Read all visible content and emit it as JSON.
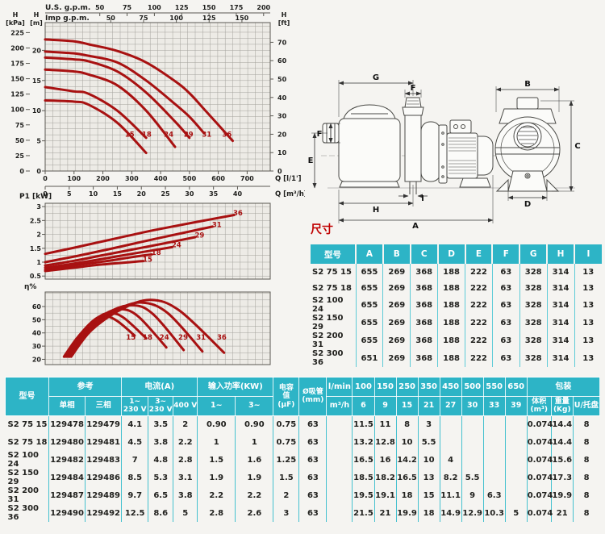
{
  "colors": {
    "accent_teal": "#2db4c6",
    "table_line_teal": "#45c1cf",
    "curve_red": "#a81111",
    "title_red": "#c00000"
  },
  "chart_data": [
    {
      "type": "line",
      "name": "head-vs-flow",
      "x_axes": [
        {
          "unit": "U.S. g.p.m.",
          "ticks": [
            50,
            75,
            100,
            125,
            150,
            175,
            200
          ],
          "lmin_per_unit": 3.785
        },
        {
          "unit": "Imp g.p.m.",
          "ticks": [
            50,
            75,
            100,
            125,
            150
          ],
          "lmin_per_unit": 4.546
        },
        {
          "unit": "Q [l/1']",
          "ticks": [
            0,
            100,
            200,
            300,
            400,
            500,
            600,
            700
          ],
          "lmin_per_unit": 1
        },
        {
          "unit": "Q [m³/h]",
          "ticks": [
            0,
            5,
            10,
            15,
            20,
            25,
            30,
            35,
            40
          ],
          "lmin_per_unit": 16.667
        }
      ],
      "y_axes": [
        {
          "unit": "H",
          "unit2": "[kPa]",
          "ticks": [
            0,
            25,
            50,
            75,
            100,
            125,
            150,
            175,
            200,
            225
          ],
          "m_per_unit": 0.10197
        },
        {
          "unit": "H",
          "unit2": "[m]",
          "ticks": [
            0,
            5,
            10,
            15,
            20
          ],
          "m_per_unit": 1
        },
        {
          "unit": "H",
          "unit2": "[ft]",
          "ticks": [
            0,
            10,
            20,
            30,
            40,
            50,
            60,
            70
          ],
          "m_per_unit": 0.3048
        }
      ],
      "x_range_lmin": [
        0,
        780
      ],
      "y_range_m": [
        0,
        24.6
      ],
      "legend_position": "curve-end-labels",
      "grid": "on",
      "series": [
        {
          "name": "15",
          "points": [
            [
              0,
              11.7
            ],
            [
              100,
              11.5
            ],
            [
              150,
              11
            ],
            [
              250,
              8
            ],
            [
              350,
              3
            ]
          ],
          "label_at": [
            293,
            5.7
          ]
        },
        {
          "name": "18",
          "points": [
            [
              0,
              13.9
            ],
            [
              100,
              13.2
            ],
            [
              150,
              12.8
            ],
            [
              250,
              10
            ],
            [
              350,
              5.5
            ]
          ],
          "label_at": [
            352,
            5.7
          ]
        },
        {
          "name": "24",
          "points": [
            [
              0,
              16.8
            ],
            [
              100,
              16.5
            ],
            [
              150,
              16
            ],
            [
              250,
              14.2
            ],
            [
              350,
              10
            ],
            [
              450,
              4
            ]
          ],
          "label_at": [
            428,
            5.7
          ]
        },
        {
          "name": "29",
          "points": [
            [
              0,
              18.8
            ],
            [
              100,
              18.5
            ],
            [
              150,
              18.2
            ],
            [
              250,
              16.5
            ],
            [
              350,
              13
            ],
            [
              450,
              8.2
            ],
            [
              500,
              5.5
            ]
          ],
          "label_at": [
            497,
            5.7
          ]
        },
        {
          "name": "31",
          "points": [
            [
              0,
              19.8
            ],
            [
              100,
              19.5
            ],
            [
              150,
              19.1
            ],
            [
              250,
              18
            ],
            [
              350,
              15
            ],
            [
              450,
              11.1
            ],
            [
              500,
              9
            ],
            [
              550,
              6.3
            ]
          ],
          "label_at": [
            560,
            5.7
          ]
        },
        {
          "name": "36",
          "points": [
            [
              0,
              21.8
            ],
            [
              100,
              21.5
            ],
            [
              150,
              21
            ],
            [
              250,
              19.9
            ],
            [
              350,
              18
            ],
            [
              450,
              14.9
            ],
            [
              500,
              12.9
            ],
            [
              550,
              10.3
            ],
            [
              650,
              5
            ]
          ],
          "label_at": [
            630,
            5.7
          ]
        }
      ]
    },
    {
      "type": "line",
      "name": "input-power-vs-flow",
      "ylabel": "P1 [kW]",
      "y_ticks": [
        "0.5",
        "1",
        "1.5",
        "2",
        "2.5",
        "3"
      ],
      "y_range": [
        0.39,
        3.12
      ],
      "grid": "on",
      "series": [
        {
          "name": "15",
          "points": [
            [
              0,
              0.68
            ],
            [
              100,
              0.8
            ],
            [
              200,
              0.92
            ],
            [
              340,
              1.04
            ]
          ],
          "label_at": [
            355,
            1.02
          ]
        },
        {
          "name": "18",
          "points": [
            [
              0,
              0.73
            ],
            [
              100,
              0.88
            ],
            [
              200,
              1.02
            ],
            [
              300,
              1.18
            ],
            [
              370,
              1.28
            ]
          ],
          "label_at": [
            385,
            1.26
          ]
        },
        {
          "name": "24",
          "points": [
            [
              0,
              0.8
            ],
            [
              100,
              0.95
            ],
            [
              200,
              1.12
            ],
            [
              300,
              1.3
            ],
            [
              440,
              1.54
            ]
          ],
          "label_at": [
            455,
            1.53
          ]
        },
        {
          "name": "29",
          "points": [
            [
              0,
              0.88
            ],
            [
              100,
              1.05
            ],
            [
              200,
              1.25
            ],
            [
              300,
              1.45
            ],
            [
              400,
              1.65
            ],
            [
              520,
              1.9
            ]
          ],
          "label_at": [
            535,
            1.89
          ]
        },
        {
          "name": "31",
          "points": [
            [
              0,
              1.0
            ],
            [
              100,
              1.2
            ],
            [
              200,
              1.42
            ],
            [
              300,
              1.65
            ],
            [
              400,
              1.88
            ],
            [
              580,
              2.28
            ]
          ],
          "label_at": [
            595,
            2.27
          ]
        },
        {
          "name": "36",
          "points": [
            [
              0,
              1.3
            ],
            [
              100,
              1.52
            ],
            [
              200,
              1.75
            ],
            [
              300,
              1.98
            ],
            [
              400,
              2.2
            ],
            [
              655,
              2.7
            ]
          ],
          "label_at": [
            668,
            2.69
          ]
        }
      ]
    },
    {
      "type": "line",
      "name": "efficiency-vs-flow",
      "ylabel": "η%",
      "y_ticks": [
        "20",
        "30",
        "40",
        "50",
        "60"
      ],
      "y_range": [
        16,
        71
      ],
      "grid": "on",
      "series": [
        {
          "name": "15",
          "points": [
            [
              65,
              22
            ],
            [
              110,
              36
            ],
            [
              165,
              49
            ],
            [
              205,
              53
            ],
            [
              250,
              49
            ],
            [
              310,
              38
            ]
          ],
          "label_at": [
            297,
            35
          ]
        },
        {
          "name": "18",
          "points": [
            [
              70,
              22
            ],
            [
              120,
              38
            ],
            [
              185,
              52
            ],
            [
              230,
              55
            ],
            [
              275,
              51
            ],
            [
              350,
              36
            ]
          ],
          "label_at": [
            355,
            35
          ]
        },
        {
          "name": "24",
          "points": [
            [
              75,
              22
            ],
            [
              130,
              39
            ],
            [
              205,
              54
            ],
            [
              265,
              58
            ],
            [
              325,
              52
            ],
            [
              420,
              29
            ]
          ],
          "label_at": [
            413,
            35
          ]
        },
        {
          "name": "29",
          "points": [
            [
              80,
              22
            ],
            [
              140,
              40
            ],
            [
              225,
              56
            ],
            [
              305,
              61
            ],
            [
              375,
              54
            ],
            [
              480,
              27
            ]
          ],
          "label_at": [
            478,
            35
          ]
        },
        {
          "name": "31",
          "points": [
            [
              85,
              22
            ],
            [
              150,
              41
            ],
            [
              245,
              57
            ],
            [
              335,
              63
            ],
            [
              425,
              55
            ],
            [
              545,
              26
            ]
          ],
          "label_at": [
            540,
            35
          ]
        },
        {
          "name": "36",
          "points": [
            [
              90,
              22
            ],
            [
              160,
              42
            ],
            [
              265,
              58
            ],
            [
              365,
              65
            ],
            [
              465,
              57
            ],
            [
              620,
              25
            ]
          ],
          "label_at": [
            612,
            35
          ]
        }
      ]
    }
  ],
  "diagram": {
    "dim_labels": [
      "A",
      "B",
      "C",
      "D",
      "E",
      "F",
      "G",
      "H",
      "I"
    ]
  },
  "dimensions": {
    "title": "尺寸",
    "columns": [
      "型号",
      "A",
      "B",
      "C",
      "D",
      "E",
      "F",
      "G",
      "H",
      "I"
    ],
    "rows": [
      [
        "S2 75 15",
        "655",
        "269",
        "368",
        "188",
        "222",
        "63",
        "328",
        "314",
        "13"
      ],
      [
        "S2 75 18",
        "655",
        "269",
        "368",
        "188",
        "222",
        "63",
        "328",
        "314",
        "13"
      ],
      [
        "S2 100 24",
        "655",
        "269",
        "368",
        "188",
        "222",
        "63",
        "328",
        "314",
        "13"
      ],
      [
        "S2 150 29",
        "655",
        "269",
        "368",
        "188",
        "222",
        "63",
        "328",
        "314",
        "13"
      ],
      [
        "S2 200 31",
        "655",
        "269",
        "368",
        "188",
        "222",
        "63",
        "328",
        "314",
        "13"
      ],
      [
        "S2 300 36",
        "651",
        "269",
        "368",
        "188",
        "222",
        "63",
        "328",
        "314",
        "13"
      ]
    ]
  },
  "spec_table": {
    "header": {
      "model": "型号",
      "ref_group": "参考",
      "ref_single": "单相",
      "ref_three": "三相",
      "current_group": "电流(A)",
      "cur1_top": "1~",
      "cur1_bot": "230 V",
      "cur2_top": "3~",
      "cur2_bot": "230 V",
      "cur3_top": "",
      "cur3_bot": "400 V",
      "power_group": "输入功率(KW)",
      "power_single": "1~",
      "power_three": "3~",
      "cap_l1": "电容",
      "cap_l2": "值",
      "cap_l3": "(μF)",
      "suction_l1": "Ø吸管",
      "suction_l2": "(mm)",
      "flow_lmin": "l/min",
      "flow_m3h": "m³/h",
      "flows_lmin": [
        "100",
        "150",
        "250",
        "350",
        "450",
        "500",
        "550",
        "650"
      ],
      "flows_m3h": [
        "6",
        "9",
        "15",
        "21",
        "27",
        "30",
        "33",
        "39"
      ],
      "pack_group": "包装",
      "pack_vol_l1": "体积",
      "pack_vol_l2": "(m³)",
      "pack_wt_l1": "重量",
      "pack_wt_l2": "(Kg)",
      "pack_u": "U/托盘"
    },
    "rows": [
      [
        "S2 75 15",
        "129478",
        "129479",
        "4.1",
        "3.5",
        "2",
        "0.90",
        "0.90",
        "0.75",
        "63",
        "",
        "11.5",
        "11",
        "8",
        "3",
        "",
        "",
        "",
        "",
        "0.074",
        "14.4",
        "8"
      ],
      [
        "S2 75 18",
        "129480",
        "129481",
        "4.5",
        "3.8",
        "2.2",
        "1",
        "1",
        "0.75",
        "63",
        "",
        "13.2",
        "12.8",
        "10",
        "5.5",
        "",
        "",
        "",
        "",
        "0.074",
        "14.4",
        "8"
      ],
      [
        "S2 100 24",
        "129482",
        "129483",
        "7",
        "4.8",
        "2.8",
        "1.5",
        "1.6",
        "1.25",
        "63",
        "",
        "16.5",
        "16",
        "14.2",
        "10",
        "4",
        "",
        "",
        "",
        "0.074",
        "15.6",
        "8"
      ],
      [
        "S2 150 29",
        "129484",
        "129486",
        "8.5",
        "5.3",
        "3.1",
        "1.9",
        "1.9",
        "1.5",
        "63",
        "",
        "18.5",
        "18.2",
        "16.5",
        "13",
        "8.2",
        "5.5",
        "",
        "",
        "0.074",
        "17.3",
        "8"
      ],
      [
        "S2 200 31",
        "129487",
        "129489",
        "9.7",
        "6.5",
        "3.8",
        "2.2",
        "2.2",
        "2",
        "63",
        "",
        "19.5",
        "19.1",
        "18",
        "15",
        "11.1",
        "9",
        "6.3",
        "",
        "0.074",
        "19.9",
        "8"
      ],
      [
        "S2 300 36",
        "129490",
        "129492",
        "12.5",
        "8.6",
        "5",
        "2.8",
        "2.6",
        "3",
        "63",
        "",
        "21.5",
        "21",
        "19.9",
        "18",
        "14.9",
        "12.9",
        "10.3",
        "5",
        "0.074",
        "21",
        "8"
      ]
    ]
  }
}
